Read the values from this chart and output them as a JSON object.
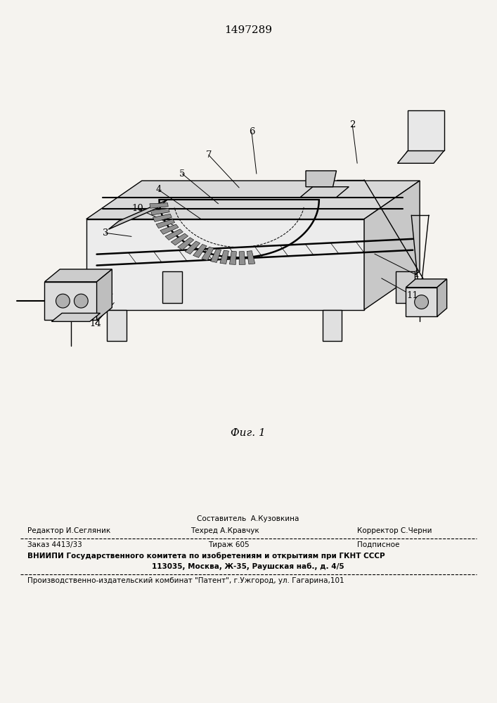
{
  "patent_number": "1497289",
  "fig_label": "Фиг. 1",
  "bg_color": "#f5f3ef",
  "footer": {
    "col2_line1": "Составитель  А.Кузовкина",
    "col1_line2": "Редактор И.Сегляник",
    "col2_line2": "Техред А.Кравчук",
    "col3_line2": "Корректор С.Черни",
    "row2_col1": "Заказ 4413/33",
    "row2_col2": "Тираж 605",
    "row2_col3": "Подписное",
    "row3": "ВНИИПИ Государственного комитета по изобретениям и открытиям при ГКНТ СССР",
    "row4": "113035, Москва, Ж-35, Раушская наб., д. 4/5",
    "row5": "Производственно-издательский комбинат \"Патент\", г.Ужгород, ул. Гагарина,101"
  }
}
